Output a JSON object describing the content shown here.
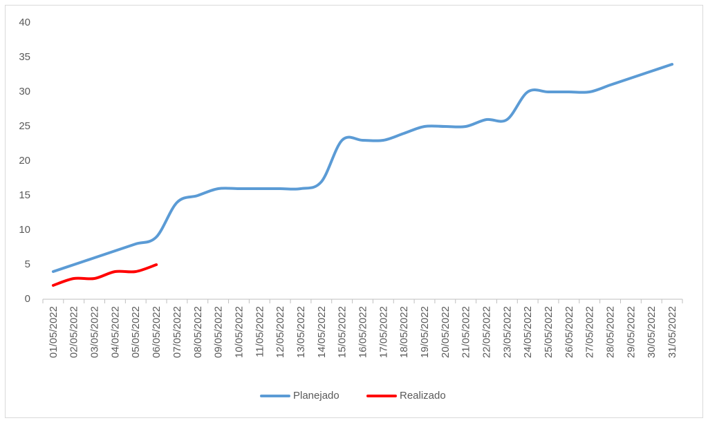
{
  "chart_data": {
    "type": "line",
    "categories": [
      "01/05/2022",
      "02/05/2022",
      "03/05/2022",
      "04/05/2022",
      "05/05/2022",
      "06/05/2022",
      "07/05/2022",
      "08/05/2022",
      "09/05/2022",
      "10/05/2022",
      "11/05/2022",
      "12/05/2022",
      "13/05/2022",
      "14/05/2022",
      "15/05/2022",
      "16/05/2022",
      "17/05/2022",
      "18/05/2022",
      "19/05/2022",
      "20/05/2022",
      "21/05/2022",
      "22/05/2022",
      "23/05/2022",
      "24/05/2022",
      "25/05/2022",
      "26/05/2022",
      "27/05/2022",
      "28/05/2022",
      "29/05/2022",
      "30/05/2022",
      "31/05/2022"
    ],
    "series": [
      {
        "name": "Planejado",
        "color": "#5b9bd5",
        "values": [
          4,
          5,
          6,
          7,
          8,
          9,
          14,
          15,
          16,
          16,
          16,
          16,
          16,
          17,
          23,
          23,
          23,
          24,
          25,
          25,
          25,
          26,
          26,
          30,
          30,
          30,
          30,
          31,
          32,
          33,
          34
        ]
      },
      {
        "name": "Realizado",
        "color": "#ff0000",
        "values": [
          2,
          3,
          3,
          4,
          4,
          5,
          null,
          null,
          null,
          null,
          null,
          null,
          null,
          null,
          null,
          null,
          null,
          null,
          null,
          null,
          null,
          null,
          null,
          null,
          null,
          null,
          null,
          null,
          null,
          null,
          null
        ]
      }
    ],
    "ylim": [
      0,
      40
    ],
    "yticks": [
      0,
      5,
      10,
      15,
      20,
      25,
      30,
      35,
      40
    ],
    "grid": false,
    "legend": "bottom"
  }
}
